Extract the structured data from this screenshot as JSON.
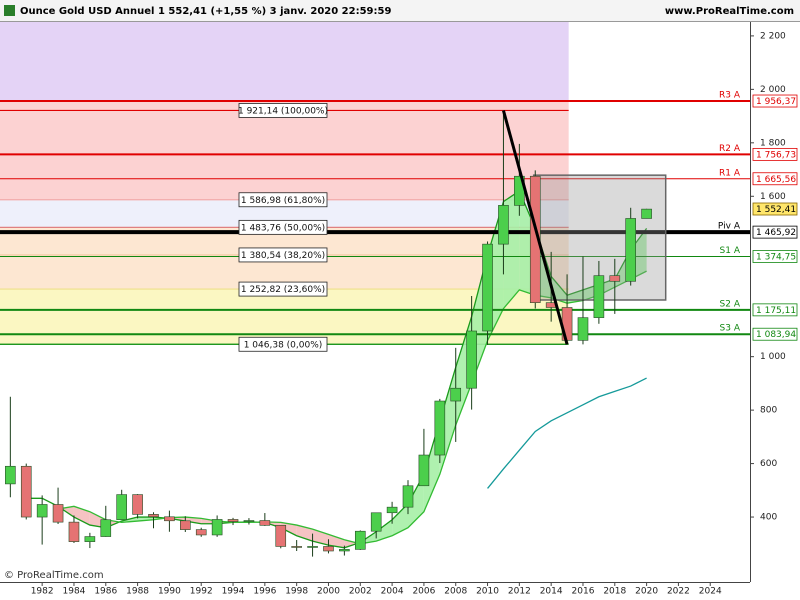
{
  "chart_data": {
    "type": "candlestick",
    "title": "Ounce Gold USD Annuel 1 552,41 (+1,55 %) 3 janv. 2020 22:59:59",
    "site": "www.ProRealTime.com",
    "watermark": "© ProRealTime.com",
    "x": [
      1980,
      1981,
      1982,
      1983,
      1984,
      1985,
      1986,
      1987,
      1988,
      1989,
      1990,
      1991,
      1992,
      1993,
      1994,
      1995,
      1996,
      1997,
      1998,
      1999,
      2000,
      2001,
      2002,
      2003,
      2004,
      2005,
      2006,
      2007,
      2008,
      2009,
      2010,
      2011,
      2012,
      2013,
      2014,
      2015,
      2016,
      2017,
      2018,
      2019,
      2020
    ],
    "open": [
      524,
      590,
      400,
      447,
      381,
      308,
      327,
      390,
      484,
      410,
      401,
      386,
      353,
      333,
      391,
      383,
      387,
      369,
      290,
      288,
      290,
      273,
      279,
      347,
      416,
      437,
      517,
      632,
      834,
      882,
      1096,
      1421,
      1566,
      1675,
      1202,
      1184,
      1061,
      1146,
      1303,
      1282,
      1517
    ],
    "high": [
      850,
      600,
      481,
      510,
      406,
      341,
      442,
      502,
      486,
      418,
      424,
      403,
      360,
      406,
      397,
      396,
      415,
      367,
      314,
      338,
      317,
      293,
      350,
      417,
      457,
      538,
      730,
      842,
      1033,
      1227,
      1431,
      1921,
      1796,
      1697,
      1392,
      1308,
      1375,
      1358,
      1366,
      1557,
      1553
    ],
    "low": [
      474,
      391,
      297,
      374,
      303,
      284,
      326,
      390,
      395,
      358,
      345,
      344,
      326,
      326,
      370,
      372,
      367,
      283,
      273,
      252,
      264,
      256,
      277,
      320,
      375,
      411,
      516,
      602,
      681,
      802,
      1044,
      1308,
      1527,
      1180,
      1131,
      1046,
      1046,
      1123,
      1160,
      1266,
      1517
    ],
    "close": [
      590,
      400,
      447,
      381,
      308,
      327,
      390,
      484,
      410,
      401,
      386,
      353,
      333,
      391,
      383,
      387,
      369,
      290,
      288,
      290,
      273,
      279,
      347,
      416,
      437,
      517,
      632,
      834,
      882,
      1096,
      1421,
      1566,
      1675,
      1202,
      1184,
      1061,
      1146,
      1303,
      1282,
      1517,
      1552
    ],
    "up_color": "#4ccf4c",
    "down_color": "#e57373",
    "lines": [
      {
        "color": "#1a9a1a",
        "values": [
          null,
          470,
          470,
          440,
          400,
          370,
          360,
          385,
          400,
          400,
          395,
          385,
          375,
          375,
          380,
          382,
          380,
          360,
          330,
          310,
          295,
          285,
          305,
          345,
          390,
          450,
          560,
          760,
          960,
          1150,
          1380,
          1580,
          1620,
          1480,
          1300,
          1230,
          1250,
          1270,
          1290,
          1400,
          1480
        ]
      },
      {
        "color": "#33bb33",
        "values": [
          null,
          null,
          null,
          430,
          440,
          420,
          390,
          380,
          385,
          390,
          398,
          400,
          395,
          385,
          380,
          380,
          382,
          380,
          370,
          355,
          335,
          315,
          300,
          310,
          330,
          360,
          420,
          560,
          744,
          900,
          1060,
          1180,
          1250,
          1230,
          1220,
          1200,
          1210,
          1230,
          1260,
          1290,
          1320
        ]
      },
      {
        "color": "#159a9a",
        "values": [
          null,
          null,
          null,
          null,
          null,
          null,
          null,
          null,
          null,
          null,
          null,
          null,
          null,
          null,
          null,
          null,
          null,
          null,
          null,
          null,
          null,
          null,
          null,
          null,
          null,
          null,
          null,
          null,
          null,
          null,
          507,
          580,
          650,
          720,
          760,
          790,
          820,
          850,
          870,
          890,
          920
        ]
      }
    ],
    "band_colors": {
      "up": "#a6f0a6",
      "down": "#f5bcbc"
    },
    "zones": [
      {
        "top": 2252,
        "bottom": 1956.37,
        "color": "#e4d3f6"
      },
      {
        "top": 1956.37,
        "bottom": 1586.98,
        "color": "#fcd2d2"
      },
      {
        "top": 1586.98,
        "bottom": 1483.76,
        "color": "#eef0fb"
      },
      {
        "top": 1483.76,
        "bottom": 1252.82,
        "color": "#fde7d2"
      },
      {
        "top": 1252.82,
        "bottom": 1046.38,
        "color": "#fbf7c2"
      }
    ],
    "fibonacci": {
      "x_end": 2015.1,
      "levels": [
        {
          "value": 1921.14,
          "label": "1 921,14 (100,00%)",
          "color": "#e00000"
        },
        {
          "value": 1586.98,
          "label": "1 586,98 (61,80%)",
          "color": "#f2aaaa"
        },
        {
          "value": 1483.76,
          "label": "1 483,76 (50,00%)",
          "color": "#e08080"
        },
        {
          "value": 1380.54,
          "label": "1 380,54 (38,20%)",
          "color": "#f2c9a0"
        },
        {
          "value": 1252.82,
          "label": "1 252,82 (23,60%)",
          "color": "#eee08a"
        },
        {
          "value": 1046.38,
          "label": "1 046,38 (0,00%)",
          "color": "#008800"
        }
      ]
    },
    "pivots": [
      {
        "name": "R3 A",
        "value": 1956.37,
        "label": "1 956,37",
        "color": "#e00000",
        "width": 2
      },
      {
        "name": "R2 A",
        "value": 1756.73,
        "label": "1 756,73",
        "color": "#e00000",
        "width": 2
      },
      {
        "name": "R1 A",
        "value": 1665.56,
        "label": "1 665,56",
        "color": "#e00000",
        "width": 1
      },
      {
        "name": "Piv A",
        "value": 1465.92,
        "label": "1 465,92",
        "color": "#000000",
        "width": 4
      },
      {
        "name": "S1 A",
        "value": 1374.75,
        "label": "1 374,75",
        "color": "#118811",
        "width": 1
      },
      {
        "name": "S2 A",
        "value": 1175.11,
        "label": "1 175,11",
        "color": "#118811",
        "width": 2
      },
      {
        "name": "S3 A",
        "value": 1083.94,
        "label": "1 083,94",
        "color": "#118811",
        "width": 2
      }
    ],
    "last": {
      "value": 1552.41,
      "label": "1 552,41",
      "color": "#ffe66b"
    },
    "box": {
      "x": [
        2012.9,
        2021.2
      ],
      "y": [
        1212,
        1679
      ]
    },
    "trendline": {
      "x": [
        2011,
        2015
      ],
      "y": [
        1921,
        1046
      ]
    },
    "xlim": [
      1979.35,
      2026.5
    ],
    "xticks": [
      1982,
      1984,
      1986,
      1988,
      1990,
      1992,
      1994,
      1996,
      1998,
      2000,
      2002,
      2004,
      2006,
      2008,
      2010,
      2012,
      2014,
      2016,
      2018,
      2020,
      2022,
      2024
    ],
    "ylim": [
      157,
      2252
    ],
    "yticks": [
      {
        "value": 2200,
        "label": "2 200"
      },
      {
        "value": 2000,
        "label": "2 000"
      },
      {
        "value": 1800,
        "label": "1 800"
      },
      {
        "value": 1600,
        "label": "1 600"
      },
      {
        "value": 1000,
        "label": "1 000"
      },
      800,
      600,
      400
    ]
  }
}
